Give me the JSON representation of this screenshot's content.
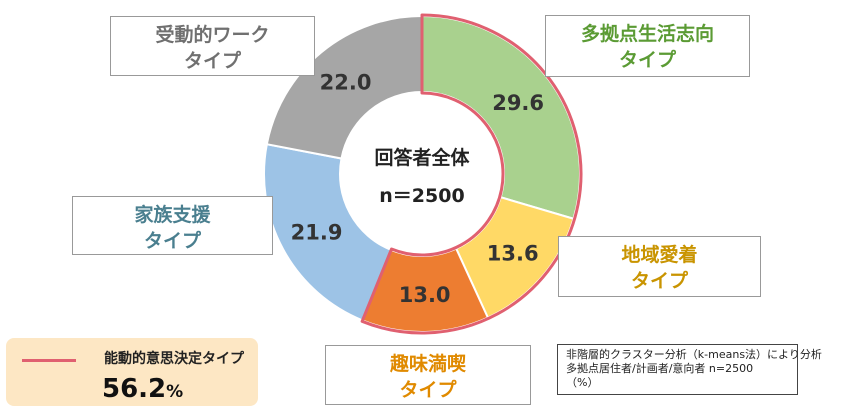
{
  "chart_data": {
    "type": "pie",
    "center_label": [
      "回答者全体",
      "n＝2500"
    ],
    "slices": [
      {
        "name_lines": [
          "多拠点生活志向",
          "タイプ"
        ],
        "value": 29.6,
        "label": "29.6",
        "color": "#a9d18e",
        "text_color": "#5b9b34",
        "decisive": true
      },
      {
        "name_lines": [
          "地域愛着",
          "タイプ"
        ],
        "value": 13.6,
        "label": "13.6",
        "color": "#ffd966",
        "text_color": "#c99400",
        "decisive": true
      },
      {
        "name_lines": [
          "趣味満喫",
          "タイプ"
        ],
        "value": 13.0,
        "label": "13.0",
        "color": "#ed7d31",
        "text_color": "#e08a00",
        "decisive": true
      },
      {
        "name_lines": [
          "家族支援",
          "タイプ"
        ],
        "value": 21.9,
        "label": "21.9",
        "color": "#9dc3e6",
        "text_color": "#4a7f8f",
        "decisive": false
      },
      {
        "name_lines": [
          "受動的ワーク",
          "タイプ"
        ],
        "value": 22.0,
        "label": "22.0",
        "color": "#a6a6a6",
        "text_color": "#707070",
        "decisive": false
      }
    ],
    "highlight_color": "#e06070"
  },
  "legend": {
    "label": "能動的意思決定タイプ",
    "value": "56.2",
    "unit": "%"
  },
  "note": {
    "lines": [
      "非階層的クラスター分析（k-means法）により分析",
      "多拠点居住者/計画者/意向者 n=2500",
      "（%）"
    ]
  }
}
